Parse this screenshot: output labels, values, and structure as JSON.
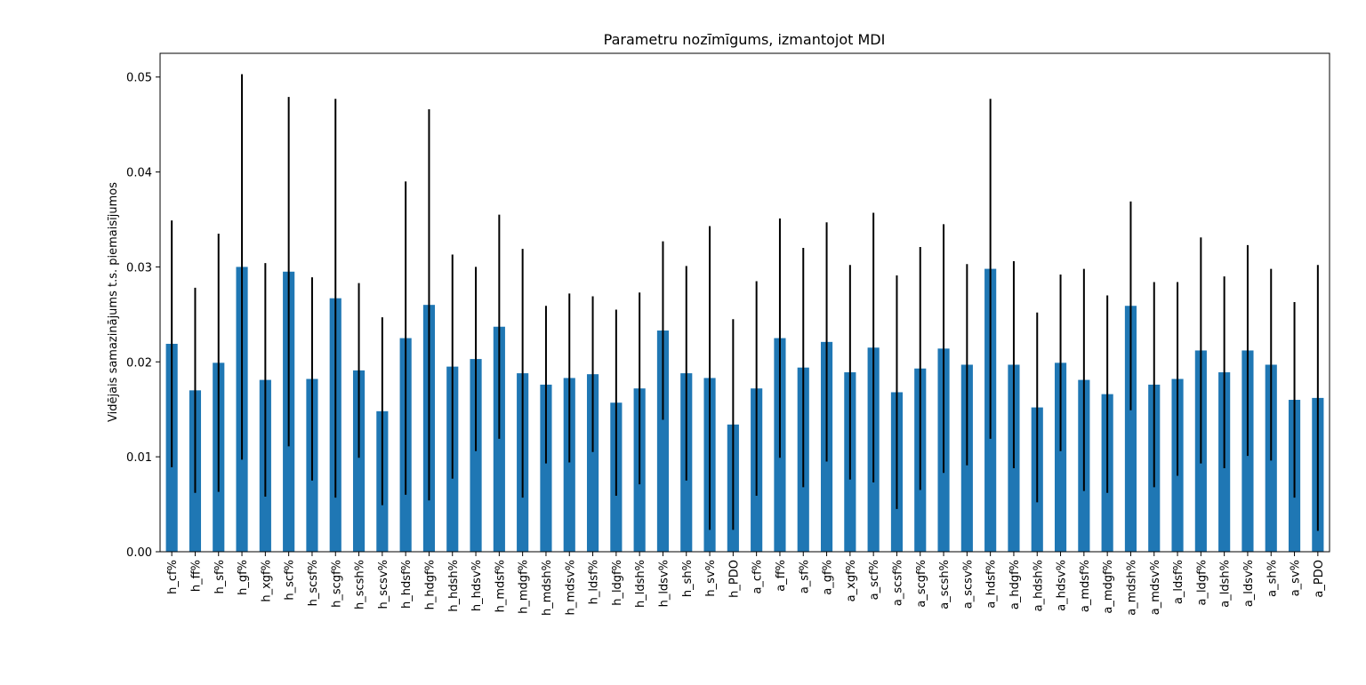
{
  "chart_data": {
    "type": "bar",
    "title": "Parametru nozīmīgums, izmantojot MDI",
    "xlabel": "",
    "ylabel": "Vidējais samazinājums t.s. piemaisījumos",
    "ylim": [
      0,
      0.0525
    ],
    "yticks": [
      0.0,
      0.01,
      0.02,
      0.03,
      0.04,
      0.05
    ],
    "ytick_labels": [
      "0.00",
      "0.01",
      "0.02",
      "0.03",
      "0.04",
      "0.05"
    ],
    "grid": false,
    "legend": "none",
    "bar_color": "#1f77b4",
    "error_color": "#000000",
    "categories": [
      "h_cf%",
      "h_ff%",
      "h_sf%",
      "h_gf%",
      "h_xgf%",
      "h_scf%",
      "h_scsf%",
      "h_scgf%",
      "h_scsh%",
      "h_scsv%",
      "h_hdsf%",
      "h_hdgf%",
      "h_hdsh%",
      "h_hdsv%",
      "h_mdsf%",
      "h_mdgf%",
      "h_mdsh%",
      "h_mdsv%",
      "h_ldsf%",
      "h_ldgf%",
      "h_ldsh%",
      "h_ldsv%",
      "h_sh%",
      "h_sv%",
      "h_PDO",
      "a_cf%",
      "a_ff%",
      "a_sf%",
      "a_gf%",
      "a_xgf%",
      "a_scf%",
      "a_scsf%",
      "a_scgf%",
      "a_scsh%",
      "a_scsv%",
      "a_hdsf%",
      "a_hdgf%",
      "a_hdsh%",
      "a_hdsv%",
      "a_mdsf%",
      "a_mdgf%",
      "a_mdsh%",
      "a_mdsv%",
      "a_ldsf%",
      "a_ldgf%",
      "a_ldsh%",
      "a_ldsv%",
      "a_sh%",
      "a_sv%",
      "a_PDO"
    ],
    "values": [
      0.0219,
      0.017,
      0.0199,
      0.03,
      0.0181,
      0.0295,
      0.0182,
      0.0267,
      0.0191,
      0.0148,
      0.0225,
      0.026,
      0.0195,
      0.0203,
      0.0237,
      0.0188,
      0.0176,
      0.0183,
      0.0187,
      0.0157,
      0.0172,
      0.0233,
      0.0188,
      0.0183,
      0.0134,
      0.0172,
      0.0225,
      0.0194,
      0.0221,
      0.0189,
      0.0215,
      0.0168,
      0.0193,
      0.0214,
      0.0197,
      0.0298,
      0.0197,
      0.0152,
      0.0199,
      0.0181,
      0.0166,
      0.0259,
      0.0176,
      0.0182,
      0.0212,
      0.0189,
      0.0212,
      0.0197,
      0.016,
      0.0162
    ],
    "errors": [
      0.013,
      0.0108,
      0.0136,
      0.0203,
      0.0123,
      0.0184,
      0.0107,
      0.021,
      0.0092,
      0.0099,
      0.0165,
      0.0206,
      0.0118,
      0.0097,
      0.0118,
      0.0131,
      0.0083,
      0.0089,
      0.0082,
      0.0098,
      0.0101,
      0.0094,
      0.0113,
      0.016,
      0.0111,
      0.0113,
      0.0126,
      0.0126,
      0.0126,
      0.0113,
      0.0142,
      0.0123,
      0.0128,
      0.0131,
      0.0106,
      0.0179,
      0.0109,
      0.01,
      0.0093,
      0.0117,
      0.0104,
      0.011,
      0.0108,
      0.0102,
      0.0119,
      0.0101,
      0.0111,
      0.0101,
      0.0103,
      0.014
    ]
  }
}
